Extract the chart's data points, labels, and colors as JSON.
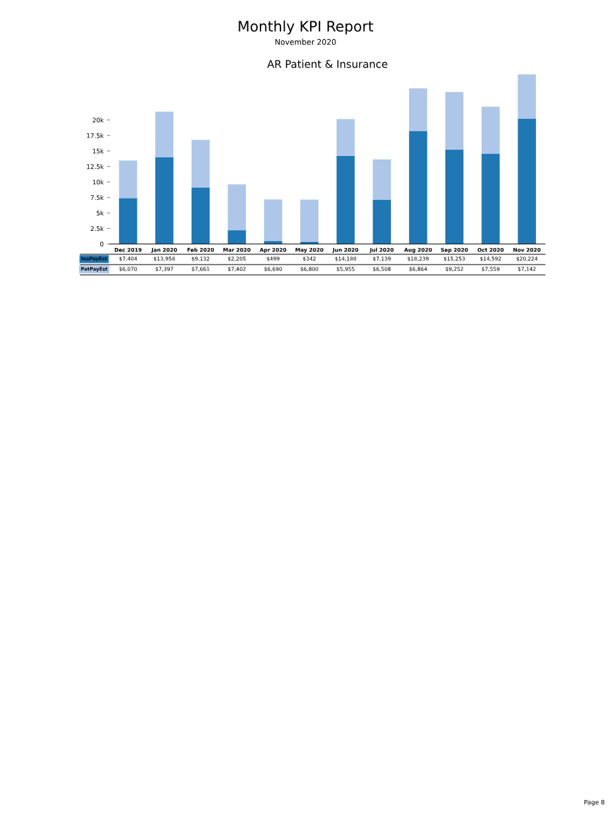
{
  "chart_data": {
    "type": "bar",
    "title": "AR Patient & Insurance",
    "stacked": true,
    "categories": [
      "Dec 2019",
      "Jan 2020",
      "Feb 2020",
      "Mar 2020",
      "Apr 2020",
      "May 2020",
      "Jun 2020",
      "Jul 2020",
      "Aug 2020",
      "Sep 2020",
      "Oct 2020",
      "Nov 2020"
    ],
    "series": [
      {
        "name": "InsPayEst",
        "color": "#1f77b4",
        "values": [
          7404,
          13958,
          9132,
          2205,
          499,
          342,
          14188,
          7139,
          18239,
          15253,
          14592,
          20224
        ],
        "value_labels": [
          "$7,404",
          "$13,958",
          "$9,132",
          "$2,205",
          "$499",
          "$342",
          "$14,188",
          "$7,139",
          "$18,239",
          "$15,253",
          "$14,592",
          "$20,224"
        ]
      },
      {
        "name": "PatPayEst",
        "color": "#aec7e8",
        "values": [
          6070,
          7397,
          7661,
          7402,
          6690,
          6800,
          5955,
          6508,
          6864,
          9252,
          7559,
          7142
        ],
        "value_labels": [
          "$6,070",
          "$7,397",
          "$7,661",
          "$7,402",
          "$6,690",
          "$6,800",
          "$5,955",
          "$6,508",
          "$6,864",
          "$9,252",
          "$7,559",
          "$7,142"
        ]
      }
    ],
    "ylim": [
      0,
      27500
    ],
    "yticks": [
      0,
      {
        "value": 2500,
        "label": "2.5k"
      },
      {
        "value": 5000,
        "label": "5k"
      },
      {
        "value": 7500,
        "label": "7.5k"
      },
      {
        "value": 10000,
        "label": "10k"
      },
      {
        "value": 12500,
        "label": "12.5k"
      },
      {
        "value": 15000,
        "label": "15k"
      },
      {
        "value": 17500,
        "label": "17.5k"
      },
      {
        "value": 20000,
        "label": "20k"
      }
    ],
    "grid": false,
    "annotations": [
      "Monthly KPI Report",
      "November 2020",
      "Page 8"
    ]
  }
}
